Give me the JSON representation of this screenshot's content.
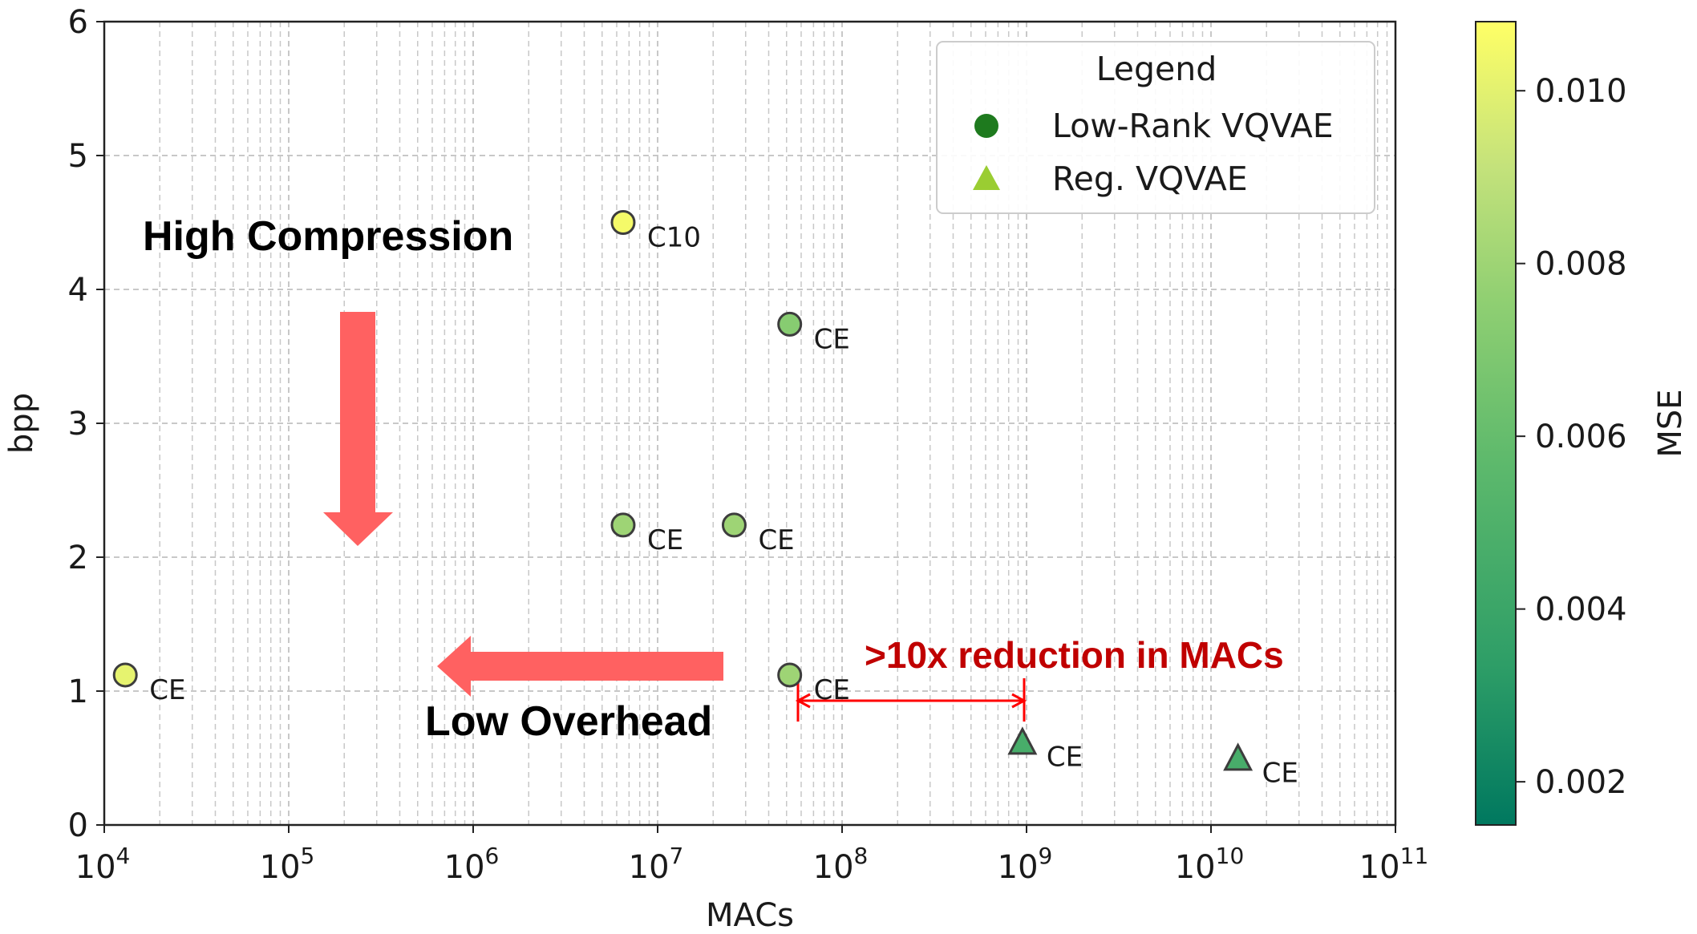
{
  "chart_data": {
    "type": "scatter",
    "xlabel": "MACs",
    "ylabel": "bpp",
    "xscale": "log",
    "xlim_exp": [
      4,
      11
    ],
    "ylim": [
      0,
      6
    ],
    "x_ticks": [
      {
        "base": "10",
        "exp": "4"
      },
      {
        "base": "10",
        "exp": "5"
      },
      {
        "base": "10",
        "exp": "6"
      },
      {
        "base": "10",
        "exp": "7"
      },
      {
        "base": "10",
        "exp": "8"
      },
      {
        "base": "10",
        "exp": "9"
      },
      {
        "base": "10",
        "exp": "10"
      },
      {
        "base": "10",
        "exp": "11"
      }
    ],
    "y_ticks": [
      "0",
      "1",
      "2",
      "3",
      "4",
      "5",
      "6"
    ],
    "grid": true,
    "colormap": {
      "label": "MSE",
      "min": 0.0015,
      "max": 0.0108,
      "ticks": [
        "0.002",
        "0.004",
        "0.006",
        "0.008",
        "0.010"
      ],
      "tick_values": [
        0.002,
        0.004,
        0.006,
        0.008,
        0.01
      ],
      "colors": [
        "#00785f",
        "#2e9e67",
        "#5db96c",
        "#8fcf72",
        "#c4e27b",
        "#ffff66"
      ]
    },
    "legend": {
      "title": "Legend",
      "position": "top-right",
      "entries": [
        {
          "label": "Low-Rank VQVAE",
          "marker": "circle",
          "color": "#1e7a1e"
        },
        {
          "label": "Reg. VQVAE",
          "marker": "triangle",
          "color": "#9acd32"
        }
      ]
    },
    "series": [
      {
        "name": "Low-Rank VQVAE",
        "marker": "circle",
        "points": [
          {
            "x": 13000,
            "y": 1.12,
            "mse": 0.01,
            "label": "CE"
          },
          {
            "x": 6500000,
            "y": 4.5,
            "mse": 0.0105,
            "label": "C10"
          },
          {
            "x": 6500000,
            "y": 2.24,
            "mse": 0.0076,
            "label": "CE"
          },
          {
            "x": 26000000,
            "y": 2.24,
            "mse": 0.0076,
            "label": "CE"
          },
          {
            "x": 52000000,
            "y": 3.74,
            "mse": 0.0068,
            "label": "CE"
          },
          {
            "x": 52000000,
            "y": 1.12,
            "mse": 0.0076,
            "label": "CE"
          }
        ]
      },
      {
        "name": "Reg. VQVAE",
        "marker": "triangle",
        "points": [
          {
            "x": 950000000,
            "y": 0.62,
            "mse": 0.0044,
            "label": "CE"
          },
          {
            "x": 14000000000,
            "y": 0.5,
            "mse": 0.0044,
            "label": "CE"
          }
        ]
      }
    ],
    "annotations": {
      "high_compression": "High Compression",
      "low_overhead": "Low Overhead",
      "reduction": ">10x reduction in MACs"
    },
    "annotation_colors": {
      "arrow": "#ff6161",
      "reduction": "#c00000",
      "bracket": "#ff0000"
    }
  }
}
